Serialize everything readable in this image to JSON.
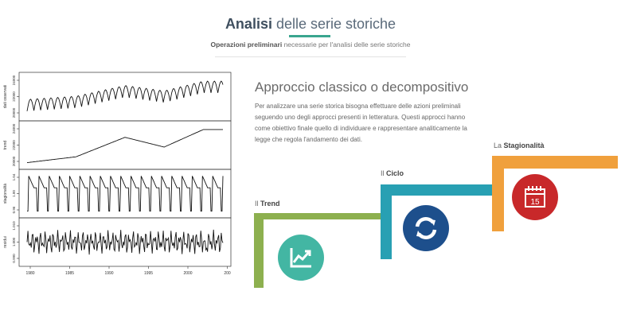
{
  "header": {
    "title_bold": "Analisi",
    "title_rest": " delle serie storiche",
    "subtitle_bold": "Operazioni preliminari",
    "subtitle_rest": " necessarie per l'analisi delle serie storiche"
  },
  "section": {
    "title": "Approccio classico o decompositivo",
    "text": "Per analizzare una serie storica bisogna effettuare delle azioni preliminali seguendo uno degli approcci presenti in letteratura. Questi approcci hanno come obiettivo finale quello di individuare e rappresentare analiticamente la legge che regola l'andamento dei dati."
  },
  "steps": [
    {
      "prefix": "Il ",
      "label": "Trend",
      "color": "#8db04f",
      "icon": "trend-chart-icon",
      "icon_color": "#43b6a3"
    },
    {
      "prefix": "Il ",
      "label": "Ciclo",
      "color": "#28a0b3",
      "icon": "refresh-cycle-icon",
      "icon_color": "#1d4f8c"
    },
    {
      "prefix": "La ",
      "label": "Stagionalità",
      "color": "#f0a03c",
      "icon": "calendar-icon",
      "icon_color": "#c8282a",
      "calendar_day": "15"
    }
  ],
  "chart_data": {
    "type": "line",
    "title": "",
    "x_ticks": [
      "1980",
      "1985",
      "1990",
      "1995",
      "2000",
      "200"
    ],
    "panels": [
      {
        "ylabel": "dati osservati",
        "yticks": [
          "20000",
          "22000",
          "24000"
        ]
      },
      {
        "ylabel": "trend",
        "yticks": [
          "20000",
          "22000",
          "24000"
        ]
      },
      {
        "ylabel": "stagionalità",
        "yticks": [
          "0.96",
          "1.00",
          "1.04"
        ]
      },
      {
        "ylabel": "residui",
        "yticks": [
          "0.990",
          "1.000",
          "1.010"
        ]
      }
    ]
  }
}
